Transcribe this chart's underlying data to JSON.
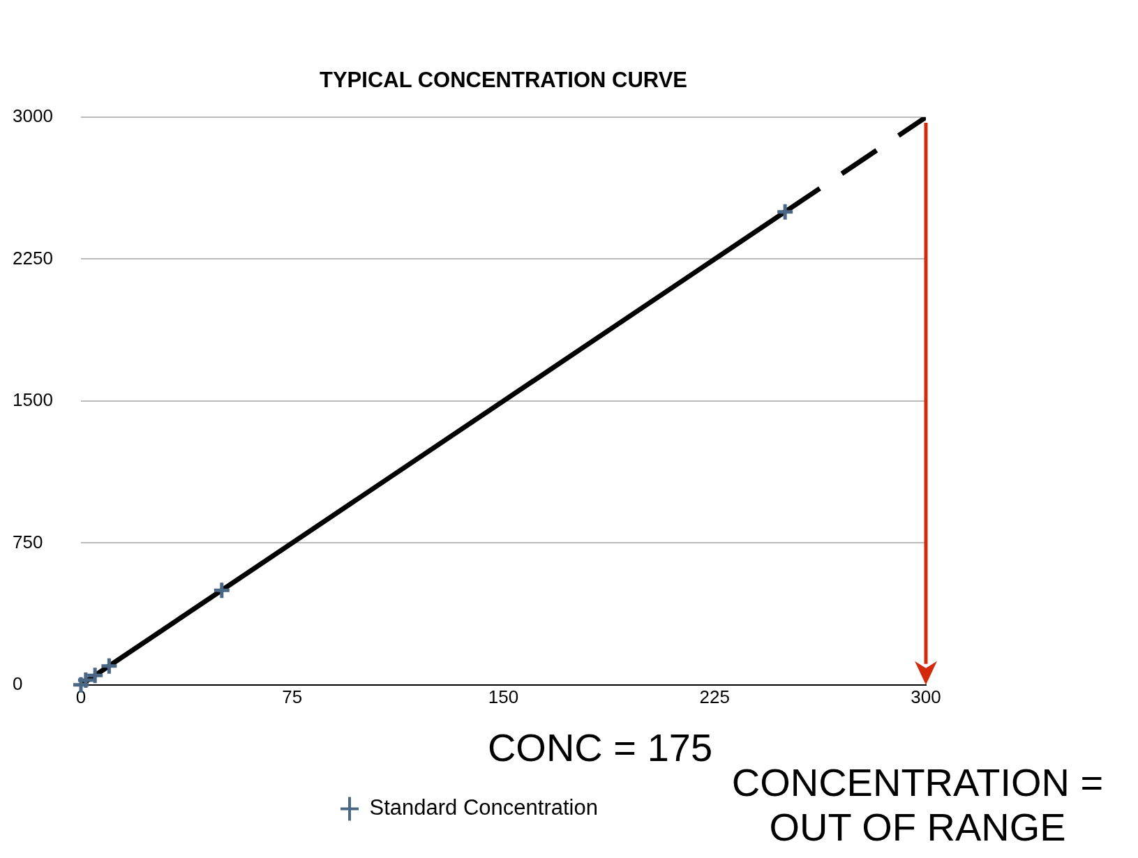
{
  "chart_data": {
    "type": "scatter",
    "title": "TYPICAL CONCENTRATION CURVE",
    "xlim": [
      0,
      300
    ],
    "xticks": [
      0,
      75,
      150,
      225,
      300
    ],
    "ylim": [
      0,
      3000
    ],
    "yticks": [
      0,
      750,
      1500,
      2250,
      3000
    ],
    "grid": "y",
    "legend": "bottom",
    "marker": "cross",
    "series": [
      {
        "name": "Standard Concentration",
        "color": "#4a6785",
        "x": [
          0,
          1.7,
          5,
          10,
          50,
          250
        ],
        "values": [
          0,
          25,
          50,
          100,
          500,
          2500
        ]
      },
      {
        "type": "line",
        "color": "#000000",
        "x": [
          0,
          250
        ],
        "values": [
          0,
          2500
        ],
        "marker": "none",
        "line_style": "solid"
      },
      {
        "type": "line",
        "color": "#000000",
        "x": [
          250,
          300
        ],
        "values": [
          2500,
          3000
        ],
        "marker": "none",
        "line_style": "dashed"
      }
    ],
    "annotations": [
      "CONC = 175",
      "CONCENTRATION = OUT OF RANGE"
    ]
  }
}
